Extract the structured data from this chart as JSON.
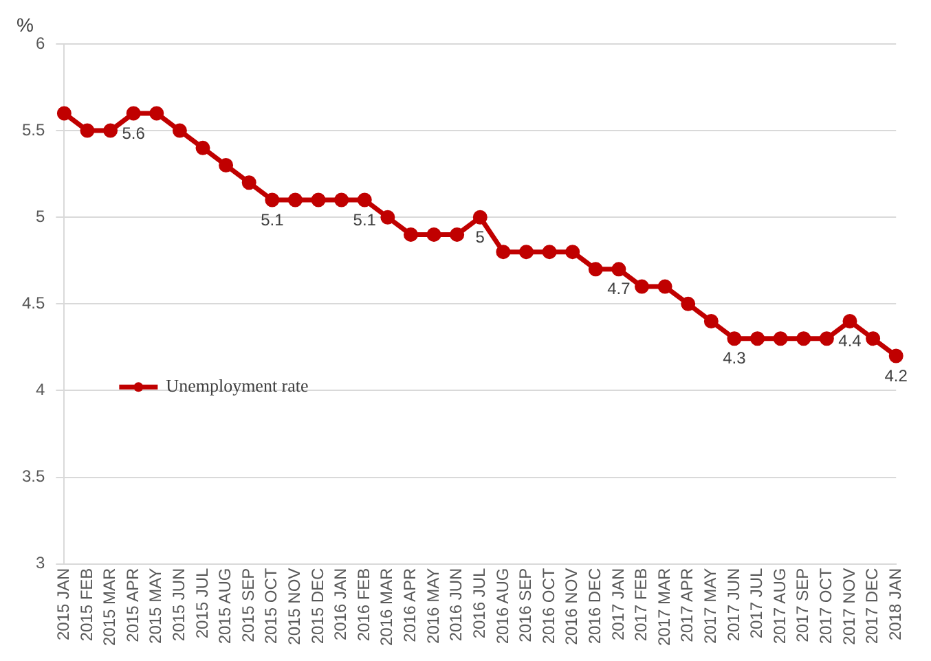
{
  "chart_data": {
    "type": "line",
    "ylabel": "%",
    "categories": [
      "2015 JAN",
      "2015 FEB",
      "2015 MAR",
      "2015 APR",
      "2015 MAY",
      "2015 JUN",
      "2015 JUL",
      "2015 AUG",
      "2015 SEP",
      "2015 OCT",
      "2015 NOV",
      "2015 DEC",
      "2016 JAN",
      "2016 FEB",
      "2016 MAR",
      "2016 APR",
      "2016 MAY",
      "2016 JUN",
      "2016 JUL",
      "2016 AUG",
      "2016 SEP",
      "2016 OCT",
      "2016 NOV",
      "2016 DEC",
      "2017 JAN",
      "2017 FEB",
      "2017 MAR",
      "2017 APR",
      "2017 MAY",
      "2017 JUN",
      "2017 JUL",
      "2017 AUG",
      "2017 SEP",
      "2017 OCT",
      "2017 NOV",
      "2017 DEC",
      "2018 JAN"
    ],
    "series": [
      {
        "name": "Unemployment rate",
        "color": "#c00000",
        "values": [
          5.6,
          5.5,
          5.5,
          5.6,
          5.6,
          5.5,
          5.4,
          5.3,
          5.2,
          5.1,
          5.1,
          5.1,
          5.1,
          5.1,
          5.0,
          4.9,
          4.9,
          4.9,
          5.0,
          4.8,
          4.8,
          4.8,
          4.8,
          4.7,
          4.7,
          4.6,
          4.6,
          4.5,
          4.4,
          4.3,
          4.3,
          4.3,
          4.3,
          4.3,
          4.4,
          4.3,
          4.2
        ],
        "value_labels": [
          null,
          null,
          null,
          "5.6",
          null,
          null,
          null,
          null,
          null,
          "5.1",
          null,
          null,
          null,
          "5.1",
          null,
          null,
          null,
          null,
          "5",
          null,
          null,
          null,
          null,
          null,
          "4.7",
          null,
          null,
          null,
          null,
          "4.3",
          null,
          null,
          null,
          null,
          "4.4",
          null,
          "4.2"
        ]
      }
    ],
    "ylim": [
      3,
      6
    ],
    "yticks": [
      3,
      3.5,
      4,
      4.5,
      5,
      5.5,
      6
    ],
    "grid": "y",
    "legend": "bottom left",
    "marker": "circle",
    "line_style": "solid"
  }
}
